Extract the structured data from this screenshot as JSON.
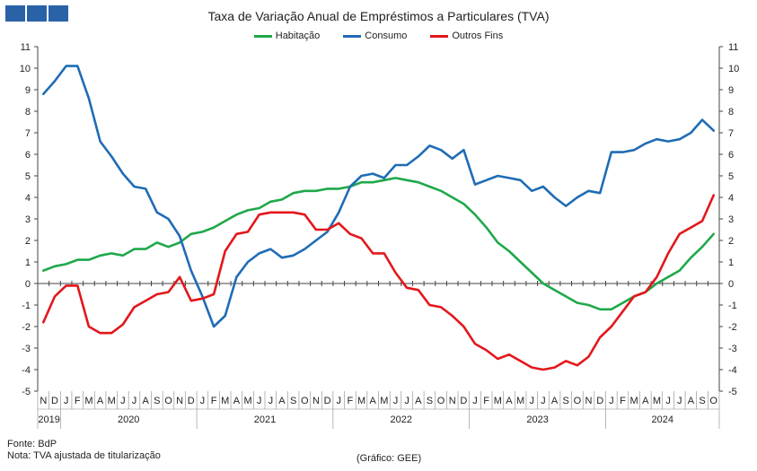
{
  "chart_data": {
    "type": "line",
    "title": "Taxa de Variação Anual de Empréstimos a Particulares (TVA)",
    "ylim": [
      -5,
      11
    ],
    "yticks": [
      11,
      10,
      9,
      8,
      7,
      6,
      5,
      4,
      3,
      2,
      1,
      0,
      -1,
      -2,
      -3,
      -4,
      -5
    ],
    "month_letters": [
      "N",
      "D",
      "J",
      "F",
      "M",
      "A",
      "M",
      "J",
      "J",
      "A",
      "S",
      "O",
      "N",
      "D",
      "J",
      "F",
      "M",
      "A",
      "M",
      "J",
      "J",
      "A",
      "S",
      "O",
      "N",
      "D",
      "J",
      "F",
      "M",
      "A",
      "M",
      "J",
      "J",
      "A",
      "S",
      "O",
      "N",
      "D",
      "J",
      "F",
      "M",
      "A",
      "M",
      "J",
      "J",
      "A",
      "S",
      "O",
      "N",
      "D",
      "J",
      "F",
      "M",
      "A",
      "M",
      "J",
      "J",
      "A",
      "S",
      "O"
    ],
    "years": [
      {
        "label": "2019",
        "start": 0,
        "end": 1
      },
      {
        "label": "2020",
        "start": 2,
        "end": 13
      },
      {
        "label": "2021",
        "start": 14,
        "end": 25
      },
      {
        "label": "2022",
        "start": 26,
        "end": 37
      },
      {
        "label": "2023",
        "start": 38,
        "end": 49
      },
      {
        "label": "2024",
        "start": 50,
        "end": 59
      }
    ],
    "grid": false,
    "legend_placement": "top-center",
    "series": [
      {
        "name": "Habitação",
        "color": "#1fa84a",
        "values": [
          0.6,
          0.8,
          0.9,
          1.1,
          1.1,
          1.3,
          1.4,
          1.3,
          1.6,
          1.6,
          1.9,
          1.7,
          1.9,
          2.3,
          2.4,
          2.6,
          2.9,
          3.2,
          3.4,
          3.5,
          3.8,
          3.9,
          4.2,
          4.3,
          4.3,
          4.4,
          4.4,
          4.5,
          4.7,
          4.7,
          4.8,
          4.9,
          4.8,
          4.7,
          4.5,
          4.3,
          4.0,
          3.7,
          3.2,
          2.6,
          1.9,
          1.5,
          1.0,
          0.5,
          0.0,
          -0.3,
          -0.6,
          -0.9,
          -1.0,
          -1.2,
          -1.2,
          -0.9,
          -0.6,
          -0.4,
          0.0,
          0.3,
          0.6,
          1.2,
          1.7,
          2.3
        ]
      },
      {
        "name": "Consumo",
        "color": "#1f6cb5",
        "values": [
          8.8,
          9.4,
          10.1,
          10.1,
          8.6,
          6.6,
          5.9,
          5.1,
          4.5,
          4.4,
          3.3,
          3.0,
          2.2,
          0.6,
          -0.6,
          -2.0,
          -1.5,
          0.3,
          1.0,
          1.4,
          1.6,
          1.2,
          1.3,
          1.6,
          2.0,
          2.4,
          3.3,
          4.5,
          5.0,
          5.1,
          4.9,
          5.5,
          5.5,
          5.9,
          6.4,
          6.2,
          5.8,
          6.2,
          4.6,
          4.8,
          5.0,
          4.9,
          4.8,
          4.3,
          4.5,
          4.0,
          3.6,
          4.0,
          4.3,
          4.2,
          6.1,
          6.1,
          6.2,
          6.5,
          6.7,
          6.6,
          6.7,
          7.0,
          7.6,
          7.1
        ]
      },
      {
        "name": "Outros Fins",
        "color": "#e3171b",
        "values": [
          -1.8,
          -0.6,
          -0.1,
          -0.1,
          -2.0,
          -2.3,
          -2.3,
          -1.9,
          -1.1,
          -0.8,
          -0.5,
          -0.4,
          0.3,
          -0.8,
          -0.7,
          -0.5,
          1.5,
          2.3,
          2.4,
          3.2,
          3.3,
          3.3,
          3.3,
          3.2,
          2.5,
          2.5,
          2.8,
          2.3,
          2.1,
          1.4,
          1.4,
          0.5,
          -0.2,
          -0.3,
          -1.0,
          -1.1,
          -1.5,
          -2.0,
          -2.8,
          -3.1,
          -3.5,
          -3.3,
          -3.6,
          -3.9,
          -4.0,
          -3.9,
          -3.6,
          -3.8,
          -3.4,
          -2.5,
          -2.0,
          -1.3,
          -0.6,
          -0.4,
          0.3,
          1.4,
          2.3,
          2.6,
          2.9,
          4.1
        ]
      }
    ]
  },
  "footer": {
    "source": "Fonte: BdP",
    "note": "Nota: TVA ajustada de titularização",
    "credit": "(Gráfico: GEE)"
  }
}
